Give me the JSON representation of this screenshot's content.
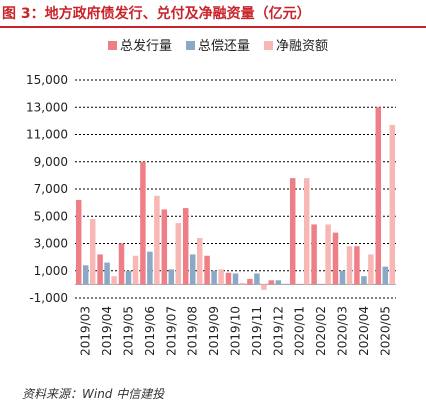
{
  "header": {
    "title": "图 3：地方政府债发行、兑付及净融资量（亿元）"
  },
  "source": {
    "text": "资料来源：Wind 中信建投"
  },
  "colors": {
    "issuance": "#ee7f86",
    "repayment": "#8aa9c7",
    "net": "#f7b8b5",
    "title": "#c9242b"
  },
  "chart_data": {
    "type": "bar",
    "title": "",
    "xlabel": "",
    "ylabel": "",
    "ylim": [
      -1000,
      15000
    ],
    "yticks": [
      -1000,
      1000,
      3000,
      5000,
      7000,
      9000,
      11000,
      13000,
      15000
    ],
    "ytick_labels": [
      "-1,000",
      "1,000",
      "3,000",
      "5,000",
      "7,000",
      "9,000",
      "11,000",
      "13,000",
      "15,000"
    ],
    "grid": "horizontal dashed",
    "legend_position": "top",
    "categories": [
      "2019/03",
      "2019/04",
      "2019/05",
      "2019/06",
      "2019/07",
      "2019/08",
      "2019/09",
      "2019/10",
      "2019/11",
      "2019/12",
      "2020/01",
      "2020/02",
      "2020/03",
      "2020/04",
      "2020/05"
    ],
    "series": [
      {
        "name": "总发行量",
        "color": "#ee7f86",
        "values": [
          6200,
          2200,
          3000,
          9000,
          5500,
          5600,
          2100,
          850,
          400,
          300,
          7800,
          4400,
          3800,
          2800,
          13000
        ]
      },
      {
        "name": "总偿还量",
        "color": "#8aa9c7",
        "values": [
          1400,
          1600,
          1000,
          2400,
          1100,
          2200,
          1000,
          800,
          800,
          300,
          0,
          0,
          1000,
          600,
          1300
        ]
      },
      {
        "name": "净融资额",
        "color": "#f7b8b5",
        "values": [
          4800,
          600,
          2100,
          6500,
          4500,
          3400,
          1100,
          100,
          -400,
          0,
          7800,
          4400,
          2800,
          2200,
          11700
        ]
      }
    ]
  }
}
